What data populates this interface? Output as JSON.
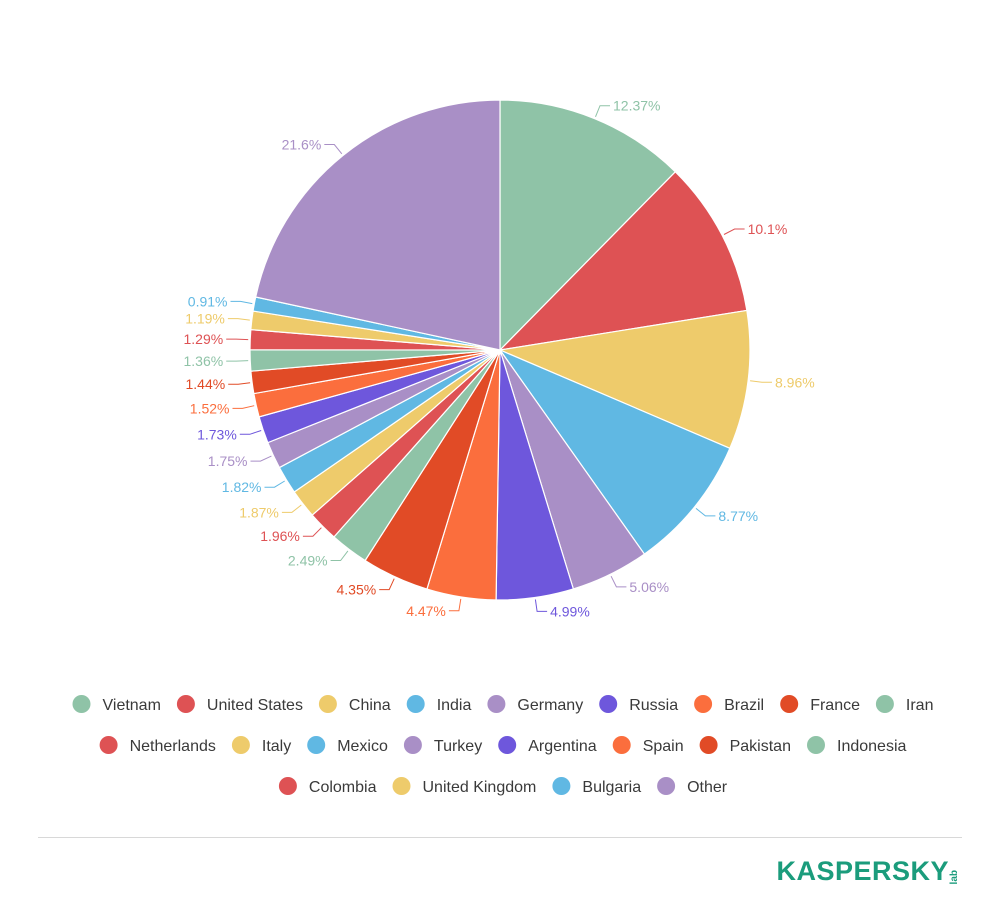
{
  "chart_data": {
    "type": "pie",
    "title": "",
    "categories": [
      "Vietnam",
      "United States",
      "China",
      "India",
      "Germany",
      "Russia",
      "Brazil",
      "France",
      "Iran",
      "Netherlands",
      "Italy",
      "Mexico",
      "Turkey",
      "Argentina",
      "Spain",
      "Pakistan",
      "Indonesia",
      "Colombia",
      "United Kingdom",
      "Bulgaria",
      "Other"
    ],
    "values": [
      12.37,
      10.1,
      8.96,
      8.77,
      5.06,
      4.99,
      4.47,
      4.35,
      2.49,
      1.96,
      1.87,
      1.82,
      1.75,
      1.73,
      1.52,
      1.44,
      1.36,
      1.29,
      1.19,
      0.91,
      21.6
    ],
    "labels": [
      "12.37%",
      "10.1%",
      "8.96%",
      "8.77%",
      "5.06%",
      "4.99%",
      "4.47%",
      "4.35%",
      "2.49%",
      "1.96%",
      "1.87%",
      "1.82%",
      "1.75%",
      "1.73%",
      "1.52%",
      "1.44%",
      "1.36%",
      "1.29%",
      "1.19%",
      "0.91%",
      "21.6%"
    ],
    "colors": [
      "#8fc3a7",
      "#de5254",
      "#eecb6b",
      "#60b8e3",
      "#a98fc6",
      "#6e57dc",
      "#fb6e3d",
      "#e14b26",
      "#8fc3a7",
      "#de5254",
      "#eecb6b",
      "#60b8e3",
      "#a98fc6",
      "#6e57dc",
      "#fb6e3d",
      "#e14b26",
      "#8fc3a7",
      "#de5254",
      "#eecb6b",
      "#60b8e3",
      "#a98fc6"
    ],
    "legend_position": "bottom",
    "start": "top",
    "direction": "clockwise"
  },
  "logo": {
    "word": "KASPERSKY",
    "suffix": "lab"
  }
}
